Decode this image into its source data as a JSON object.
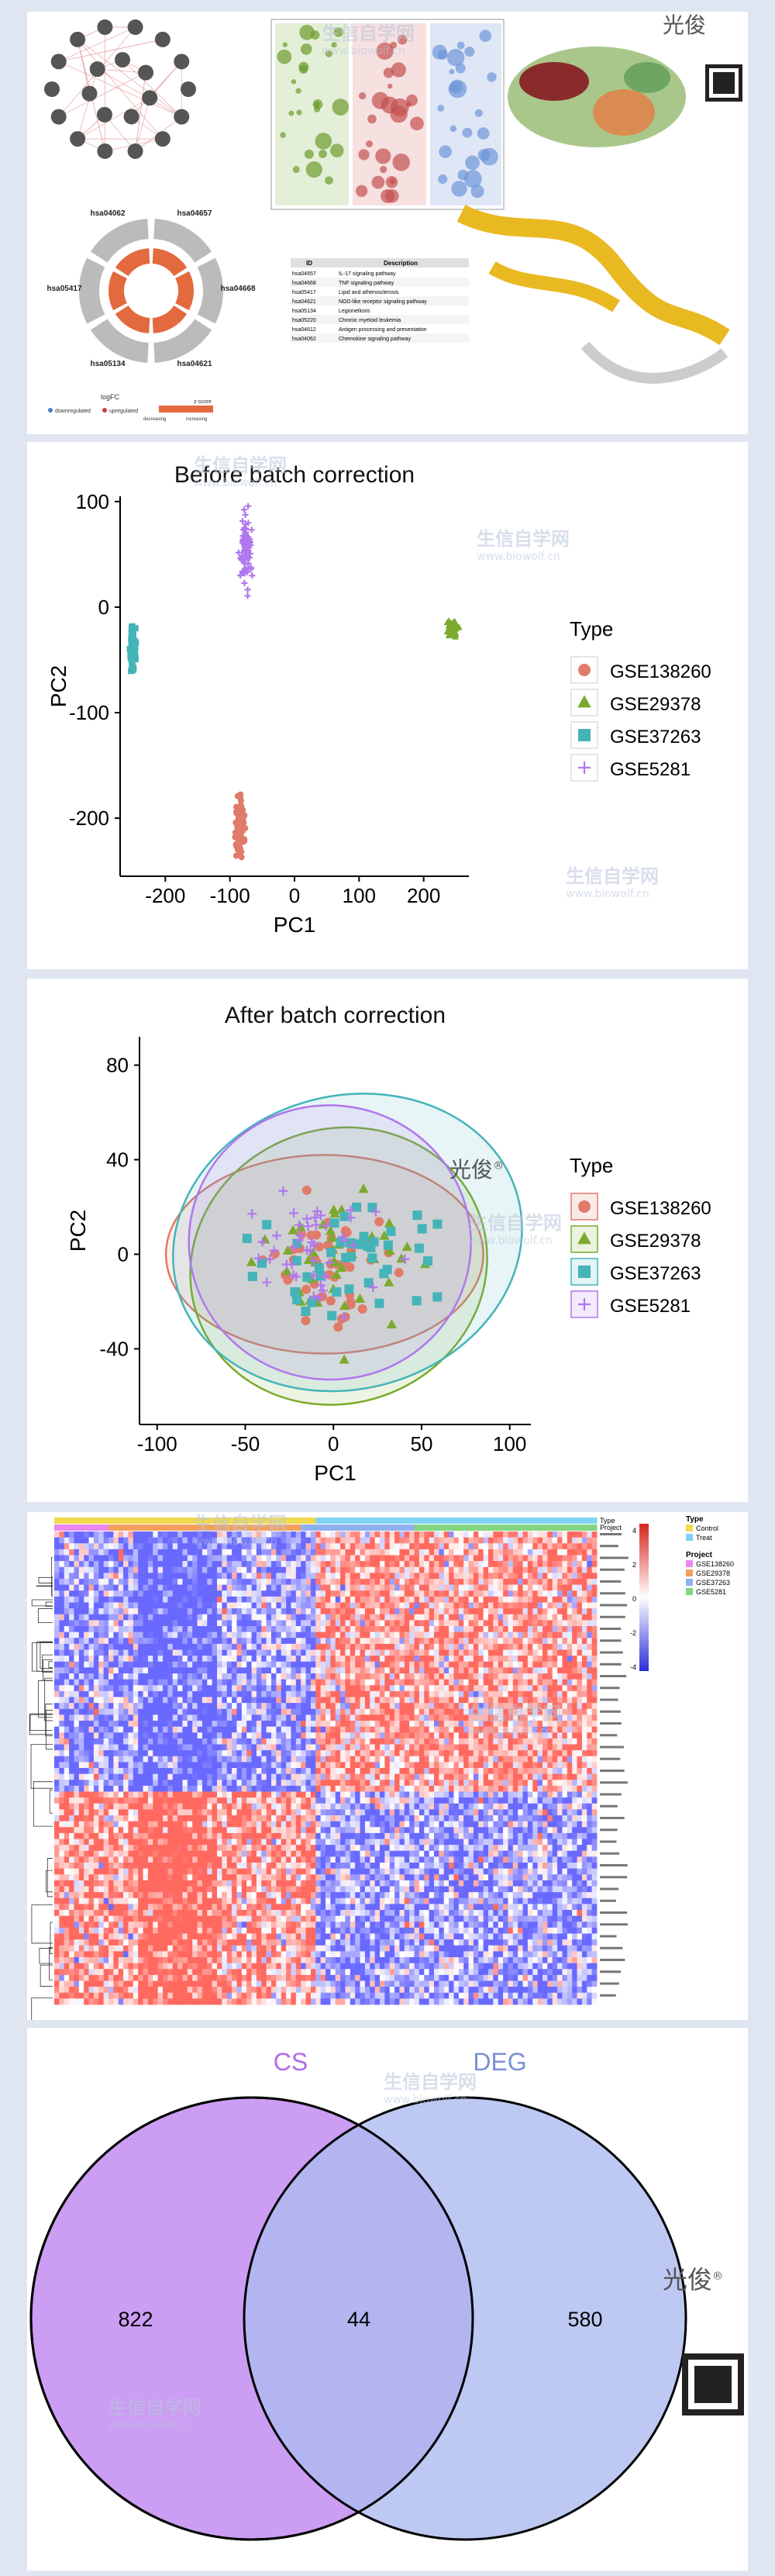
{
  "brand": {
    "name": "光俊",
    "reg": "®"
  },
  "watermark": {
    "text": "生信自学网",
    "url": "www.biowolf.cn"
  },
  "montage": {
    "table_headers": [
      "ID",
      "Description"
    ],
    "table_rows": [
      [
        "hsa04657",
        "IL-17 signaling pathway"
      ],
      [
        "hsa04668",
        "TNF signaling pathway"
      ],
      [
        "hsa05417",
        "Lipid and atherosclerosis"
      ],
      [
        "hsa04621",
        "NOD-like receptor signaling pathway"
      ],
      [
        "hsa05134",
        "Legionellosis"
      ],
      [
        "hsa05220",
        "Chronic myeloid leukemia"
      ],
      [
        "hsa04612",
        "Antigen processing and presentation"
      ],
      [
        "hsa04062",
        "Chemokine signaling pathway"
      ]
    ],
    "circle_labels": [
      "hsa04657",
      "hsa04668",
      "hsa04621",
      "hsa05134",
      "hsa05417",
      "hsa04062"
    ],
    "legend": {
      "logfc": "logFC",
      "down": "downregulated",
      "up": "upregulated",
      "z": "z-score",
      "dec": "decreasing",
      "inc": "increasing"
    }
  },
  "chart_data": [
    {
      "type": "scatter",
      "title": "Before batch correction",
      "xlabel": "PC1",
      "ylabel": "PC2",
      "xlim": [
        -270,
        270
      ],
      "ylim": [
        -255,
        105
      ],
      "xticks": [
        -200,
        -100,
        0,
        100,
        200
      ],
      "yticks": [
        100,
        0,
        -100,
        -200
      ],
      "legend_title": "Type",
      "legend_position": "right",
      "series": [
        {
          "name": "GSE138260",
          "color": "#e07b6a",
          "marker": "circle",
          "center": [
            -85,
            -205
          ],
          "spread": [
            5,
            20
          ]
        },
        {
          "name": "GSE29378",
          "color": "#7caa2d",
          "marker": "triangle",
          "center": [
            245,
            -20
          ],
          "spread": [
            5,
            5
          ]
        },
        {
          "name": "GSE37263",
          "color": "#45b4b8",
          "marker": "square",
          "center": [
            -250,
            -40
          ],
          "spread": [
            3,
            14
          ]
        },
        {
          "name": "GSE5281",
          "color": "#b077ee",
          "marker": "plus",
          "center": [
            -75,
            55
          ],
          "spread": [
            6,
            25
          ]
        }
      ]
    },
    {
      "type": "scatter",
      "title": "After batch correction",
      "xlabel": "PC1",
      "ylabel": "PC2",
      "xlim": [
        -110,
        112
      ],
      "ylim": [
        -72,
        92
      ],
      "xticks": [
        -100,
        -50,
        0,
        50,
        100
      ],
      "yticks": [
        80,
        40,
        0,
        -40
      ],
      "legend_title": "Type",
      "legend_position": "right",
      "series": [
        {
          "name": "GSE138260",
          "color": "#e07b6a",
          "marker": "circle",
          "center": [
            -5,
            -5
          ],
          "spread": [
            25,
            18
          ]
        },
        {
          "name": "GSE29378",
          "color": "#7caa2d",
          "marker": "triangle",
          "center": [
            5,
            -5
          ],
          "spread": [
            30,
            20
          ]
        },
        {
          "name": "GSE37263",
          "color": "#45b4b8",
          "marker": "square",
          "center": [
            10,
            2
          ],
          "spread": [
            35,
            22
          ]
        },
        {
          "name": "GSE5281",
          "color": "#b077ee",
          "marker": "plus",
          "center": [
            -10,
            5
          ],
          "spread": [
            30,
            22
          ]
        }
      ]
    },
    {
      "type": "heatmap",
      "annotation_labels": [
        "Type",
        "Project"
      ],
      "legend": {
        "scale_ticks": [
          "4",
          "2",
          "0",
          "-2",
          "-4"
        ],
        "type_title": "Type",
        "type_items": [
          {
            "label": "Control",
            "color": "#f2d94e"
          },
          {
            "label": "Treat",
            "color": "#7fd3f5"
          }
        ],
        "project_title": "Project",
        "project_items": [
          {
            "label": "GSE138260",
            "color": "#e986f0"
          },
          {
            "label": "GSE29378",
            "color": "#f3a05f"
          },
          {
            "label": "GSE37263",
            "color": "#8fb0ef"
          },
          {
            "label": "GSE5281",
            "color": "#83d67d"
          }
        ]
      }
    },
    {
      "type": "venn",
      "sets": [
        {
          "name": "CS",
          "color": "#c592f2",
          "label_color": "#b36ce8"
        },
        {
          "name": "DEG",
          "color": "#adbcf0",
          "label_color": "#7a90d6"
        }
      ],
      "values": {
        "CS_only": "822",
        "both": "44",
        "DEG_only": "580"
      }
    }
  ]
}
